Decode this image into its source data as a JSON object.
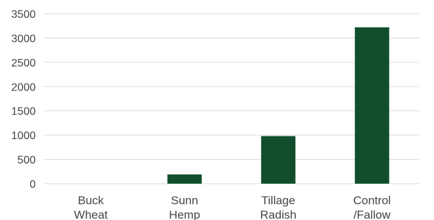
{
  "chart_data": {
    "type": "bar",
    "title": "",
    "xlabel": "",
    "ylabel": "",
    "categories": [
      [
        "Buck",
        "Wheat"
      ],
      [
        "Sunn",
        "Hemp"
      ],
      [
        "Tillage",
        "Radish"
      ],
      [
        "Control",
        "/Fallow"
      ]
    ],
    "values": [
      0,
      190,
      980,
      3220
    ],
    "ylim": [
      0,
      3500
    ],
    "yticks": [
      "0",
      "500",
      "1000",
      "1500",
      "2000",
      "2500",
      "3000",
      "3500"
    ],
    "grid": true,
    "legend": "none",
    "bar_color": "#124e2d"
  }
}
